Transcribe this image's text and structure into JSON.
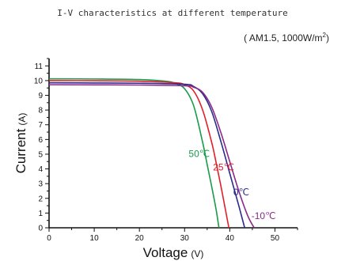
{
  "chart_data": {
    "type": "line",
    "title": "I-V characteristics at different temperature",
    "subtitle": {
      "prefix": "( AM1.5,  1000W/m",
      "sup": "2",
      "suffix": ")"
    },
    "xlabel": "Voltage",
    "xunit": "(V)",
    "ylabel": "Current",
    "yunit": "(A)",
    "xlim": [
      0,
      55
    ],
    "ylim": [
      0,
      11.5
    ],
    "xticks": [
      0,
      10,
      20,
      30,
      40,
      50
    ],
    "yticks": [
      0,
      1,
      2,
      3,
      4,
      5,
      6,
      7,
      8,
      9,
      10,
      11
    ],
    "grid": false,
    "series": [
      {
        "name": "50℃",
        "color": "#1a9a4a",
        "x": [
          0,
          10,
          20,
          26,
          28,
          30,
          32,
          34,
          35,
          36,
          37,
          37.6
        ],
        "y": [
          10.12,
          10.11,
          10.07,
          9.95,
          9.8,
          9.45,
          8.3,
          5.8,
          4.3,
          2.8,
          1.2,
          0
        ]
      },
      {
        "name": "25℃",
        "color": "#e0202a",
        "x": [
          0,
          10,
          20,
          28,
          30,
          32,
          34,
          36,
          37,
          38,
          39,
          39.8
        ],
        "y": [
          10.0,
          9.99,
          9.96,
          9.85,
          9.72,
          9.3,
          8.0,
          5.8,
          4.4,
          2.9,
          1.3,
          0
        ]
      },
      {
        "name": "0℃",
        "color": "#2a2a8c",
        "x": [
          0,
          10,
          20,
          30,
          32,
          34,
          36,
          38,
          40,
          41,
          42,
          43.3
        ],
        "y": [
          9.85,
          9.84,
          9.82,
          9.75,
          9.6,
          9.1,
          7.9,
          5.9,
          3.7,
          2.6,
          1.5,
          0
        ]
      },
      {
        "name": "-10℃",
        "color": "#8a2a8a",
        "x": [
          0,
          10,
          20,
          30,
          32,
          34,
          36,
          38,
          40,
          42,
          44,
          45.4
        ],
        "y": [
          9.72,
          9.71,
          9.7,
          9.65,
          9.55,
          9.2,
          8.2,
          6.5,
          4.5,
          2.5,
          0.8,
          0
        ]
      }
    ],
    "annotations": [
      {
        "text": "50℃",
        "x": 30.9,
        "y": 4.8,
        "color": "#1a9a4a"
      },
      {
        "text": "25℃",
        "x": 36.3,
        "y": 3.9,
        "color": "#e0202a"
      },
      {
        "text": "0℃",
        "x": 40.8,
        "y": 2.2,
        "color": "#2a2a8c"
      },
      {
        "text": "-10℃",
        "x": 44.8,
        "y": 0.6,
        "color": "#8a2a8a"
      }
    ]
  }
}
